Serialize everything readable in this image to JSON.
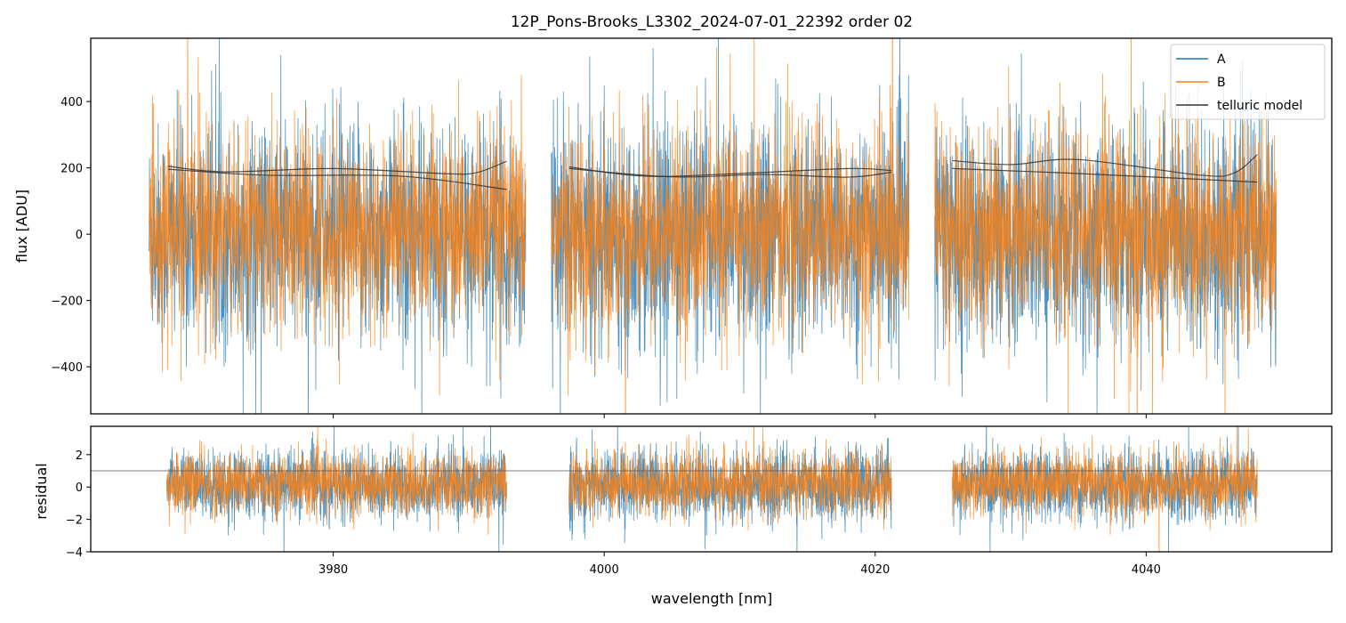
{
  "chart_data": [
    {
      "type": "line",
      "title": "12P_Pons-Brooks_L3302_2024-07-01_22392  order 02",
      "xlabel": "",
      "ylabel": "flux [ADU]",
      "xlim": [
        3962.1,
        4053.7
      ],
      "ylim": [
        -542,
        591
      ],
      "yticks": [
        -400,
        -200,
        0,
        200,
        400
      ],
      "ytick_labels": [
        "−400",
        "−200",
        "0",
        "200",
        "400"
      ],
      "xticks": [
        3980,
        4000,
        4020,
        4040
      ],
      "legend": {
        "placement": "top-right",
        "entries": [
          "A",
          "B",
          "telluric model"
        ]
      },
      "segments": [
        [
          3966.4,
          3994.2
        ],
        [
          3996.1,
          4022.5
        ],
        [
          4024.4,
          4049.6
        ]
      ],
      "series": [
        {
          "name": "A",
          "color": "#1f77b4",
          "noise_sigma": 165,
          "mean": 0
        },
        {
          "name": "B",
          "color": "#ff7f0e",
          "noise_sigma": 150,
          "mean": 10
        }
      ],
      "telluric_model": {
        "color": "#333333",
        "curves": [
          {
            "x": [
              3967.8,
              3972,
              3980,
              3988,
              3990.5,
              3992.8
            ],
            "y": [
              205,
              188,
              198,
              183,
              185,
              220
            ]
          },
          {
            "x": [
              3967.8,
              3975,
              3985,
              3992.8
            ],
            "y": [
              196,
              178,
              175,
              135
            ]
          },
          {
            "x": [
              3997.4,
              4003,
              4010,
              4018,
              4021.2
            ],
            "y": [
              203,
              175,
              183,
              198,
              192
            ]
          },
          {
            "x": [
              3997.4,
              4005,
              4012,
              4018,
              4021.2
            ],
            "y": [
              198,
              173,
              180,
              172,
              187
            ]
          },
          {
            "x": [
              4025.7,
              4030,
              4035,
              4044,
              4046.5,
              4048.2
            ],
            "y": [
              222,
              210,
              225,
              178,
              185,
              240
            ]
          },
          {
            "x": [
              4025.7,
              4035,
              4048.2
            ],
            "y": [
              198,
              183,
              157
            ]
          }
        ]
      }
    },
    {
      "type": "line",
      "xlabel": "wavelength [nm]",
      "ylabel": "residual",
      "xlim": [
        3962.1,
        4053.7
      ],
      "ylim": [
        -4,
        3.75
      ],
      "yticks": [
        -4,
        -2,
        0,
        2
      ],
      "ytick_labels": [
        "−4",
        "−2",
        "0",
        "2"
      ],
      "xticks": [
        3980,
        4000,
        4020,
        4040
      ],
      "xtick_labels": [
        "3980",
        "4000",
        "4020",
        "4040"
      ],
      "segments": [
        [
          3967.7,
          3992.8
        ],
        [
          3997.4,
          4021.2
        ],
        [
          4025.7,
          4048.2
        ]
      ],
      "series": [
        {
          "name": "A",
          "color": "#1f77b4",
          "noise_sigma": 1.05,
          "mean": 0.1
        },
        {
          "name": "B",
          "color": "#ff7f0e",
          "noise_sigma": 0.95,
          "mean": 0.2
        }
      ],
      "reference_line": 1
    }
  ]
}
